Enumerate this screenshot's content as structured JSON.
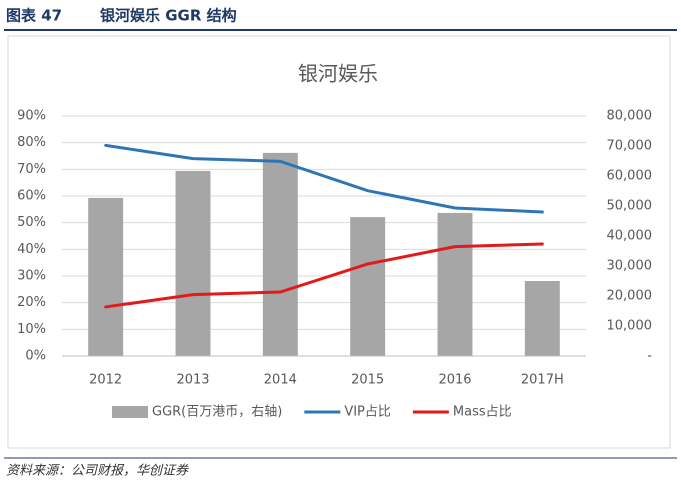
{
  "header": {
    "label": "图表 47",
    "title": "银河娱乐 GGR 结构"
  },
  "footer": {
    "source": "资料来源：公司财报，华创证券"
  },
  "chart_data": {
    "type": "combo",
    "title": "银河娱乐",
    "categories": [
      "2012",
      "2013",
      "2014",
      "2015",
      "2016",
      "2017H"
    ],
    "series": [
      {
        "name": "GGR(百万港币，右轴)",
        "type": "bar",
        "axis": "y2",
        "color": "#a6a6a6",
        "values": [
          52700,
          61700,
          67700,
          46300,
          47700,
          25000
        ]
      },
      {
        "name": "VIP占比",
        "type": "line",
        "color": "#2e75b6",
        "values": [
          79,
          74,
          73,
          62,
          55.5,
          54
        ]
      },
      {
        "name": "Mass占比",
        "type": "line",
        "color": "#e31a1c",
        "values": [
          18.4,
          23,
          24,
          34.5,
          41,
          42
        ]
      }
    ],
    "ylim": [
      0,
      90
    ],
    "yticks": [
      {
        "value": 0,
        "label": "0%"
      },
      {
        "value": 10,
        "label": "10%"
      },
      {
        "value": 20,
        "label": "20%"
      },
      {
        "value": 30,
        "label": "30%"
      },
      {
        "value": 40,
        "label": "40%"
      },
      {
        "value": 50,
        "label": "50%"
      },
      {
        "value": 60,
        "label": "60%"
      },
      {
        "value": 70,
        "label": "70%"
      },
      {
        "value": 80,
        "label": "80%"
      },
      {
        "value": 90,
        "label": "90%"
      }
    ],
    "y2lim": [
      0,
      80000
    ],
    "y2ticks": [
      {
        "value": 0,
        "label": "-"
      },
      {
        "value": 10000,
        "label": "10,000"
      },
      {
        "value": 20000,
        "label": "20,000"
      },
      {
        "value": 30000,
        "label": "30,000"
      },
      {
        "value": 40000,
        "label": "40,000"
      },
      {
        "value": 50000,
        "label": "50,000"
      },
      {
        "value": 60000,
        "label": "60,000"
      },
      {
        "value": 70000,
        "label": "70,000"
      },
      {
        "value": 80000,
        "label": "80,000"
      }
    ],
    "grid": true,
    "legend": "bottom"
  }
}
